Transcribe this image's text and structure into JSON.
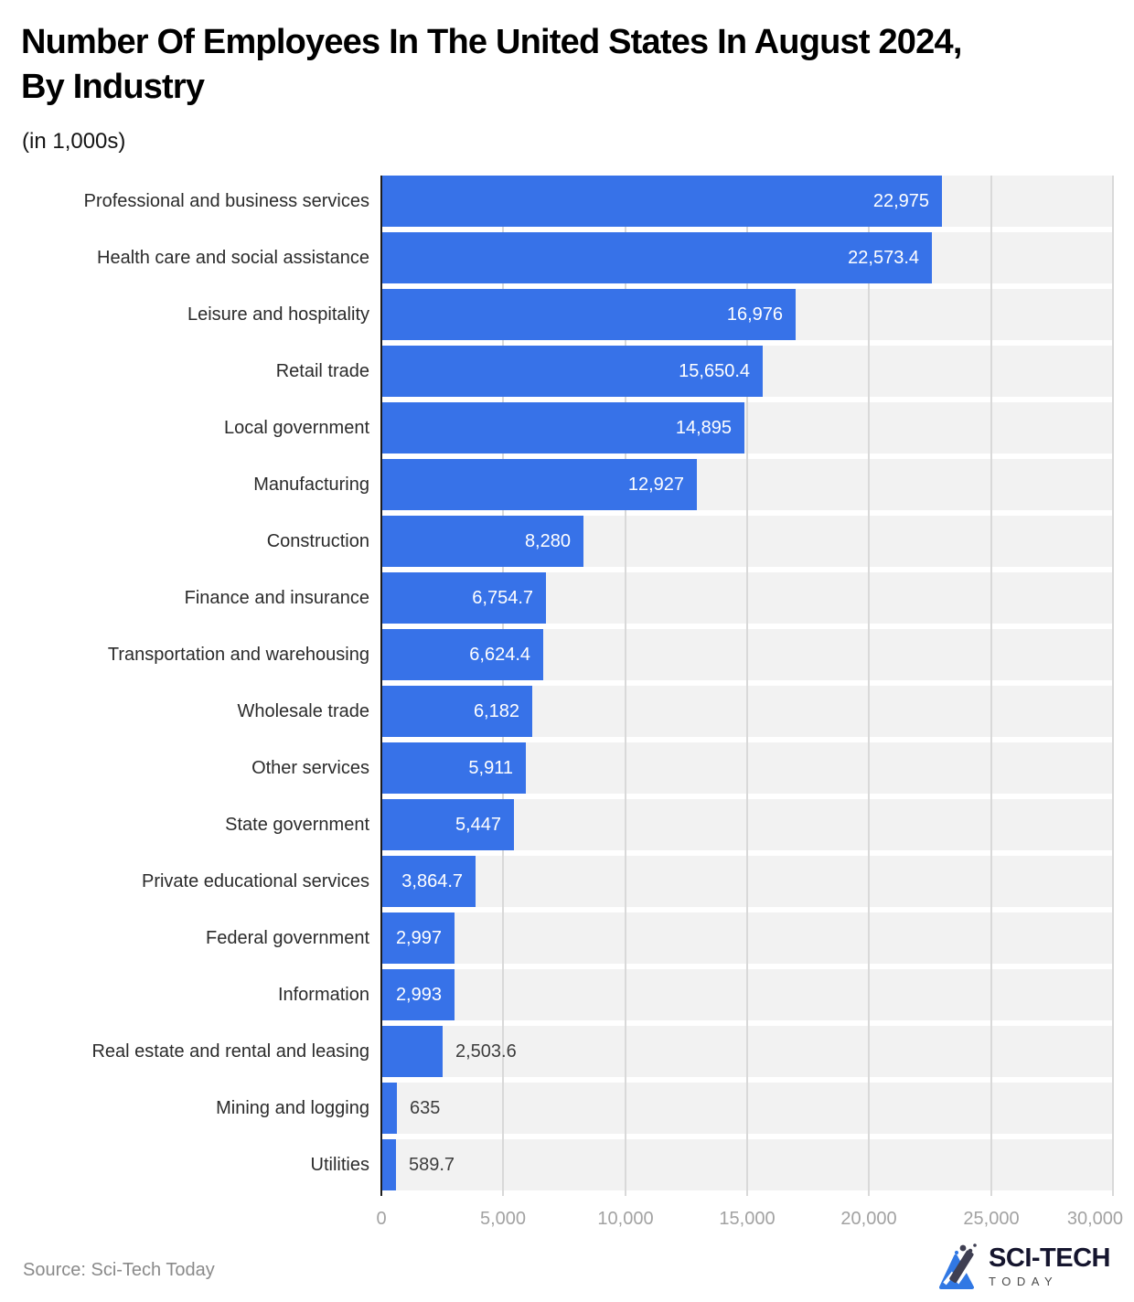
{
  "header": {
    "title_line1": "Number Of Employees In The United States In August 2024,",
    "title_line2": "By Industry",
    "subtitle": "(in 1,000s)"
  },
  "chart_data": {
    "type": "bar",
    "orientation": "horizontal",
    "title": "Number Of Employees In The United States In August 2024, By Industry",
    "subtitle": "(in 1,000s)",
    "xlabel": "",
    "ylabel": "",
    "categories": [
      "Professional and business services",
      "Health care and social assistance",
      "Leisure and hospitality",
      "Retail trade",
      "Local government",
      "Manufacturing",
      "Construction",
      "Finance and insurance",
      "Transportation and warehousing",
      "Wholesale trade",
      "Other services",
      "State government",
      "Private educational services",
      "Federal government",
      "Information",
      "Real estate and rental and leasing",
      "Mining and logging",
      "Utilities"
    ],
    "values": [
      22975,
      22573.4,
      16976,
      15650.4,
      14895,
      12927,
      8280,
      6754.7,
      6624.4,
      6182,
      5911,
      5447,
      3864.7,
      2997,
      2993,
      2503.6,
      635,
      589.7
    ],
    "value_labels": [
      "22,975",
      "22,573.4",
      "16,976",
      "15,650.4",
      "14,895",
      "12,927",
      "8,280",
      "6,754.7",
      "6,624.4",
      "6,182",
      "5,911",
      "5,447",
      "3,864.7",
      "2,997",
      "2,993",
      "2,503.6",
      "635",
      "589.7"
    ],
    "xlim": [
      0,
      30000
    ],
    "x_ticks": [
      0,
      5000,
      10000,
      15000,
      20000,
      25000,
      30000
    ],
    "x_tick_labels": [
      "0",
      "5,000",
      "10,000",
      "15,000",
      "20,000",
      "25,000",
      "30,000"
    ],
    "grid": true,
    "legend": false,
    "bar_color": "#3772e8",
    "band_color": "#f2f2f2",
    "gridline_color": "#d9d9d9",
    "axis_line_color": "#1d1d1d",
    "value_label_inside_color": "#ffffff",
    "value_label_outside_color": "#3d3d3d",
    "inside_label_min_value": 2900
  },
  "footer": {
    "source": "Source: Sci-Tech Today",
    "logo": {
      "line1": "SCI-TECH",
      "line2": "TODAY",
      "icon": "flask-triangle-icon",
      "accent_color": "#3178e4",
      "dark_color": "#15152e"
    }
  }
}
